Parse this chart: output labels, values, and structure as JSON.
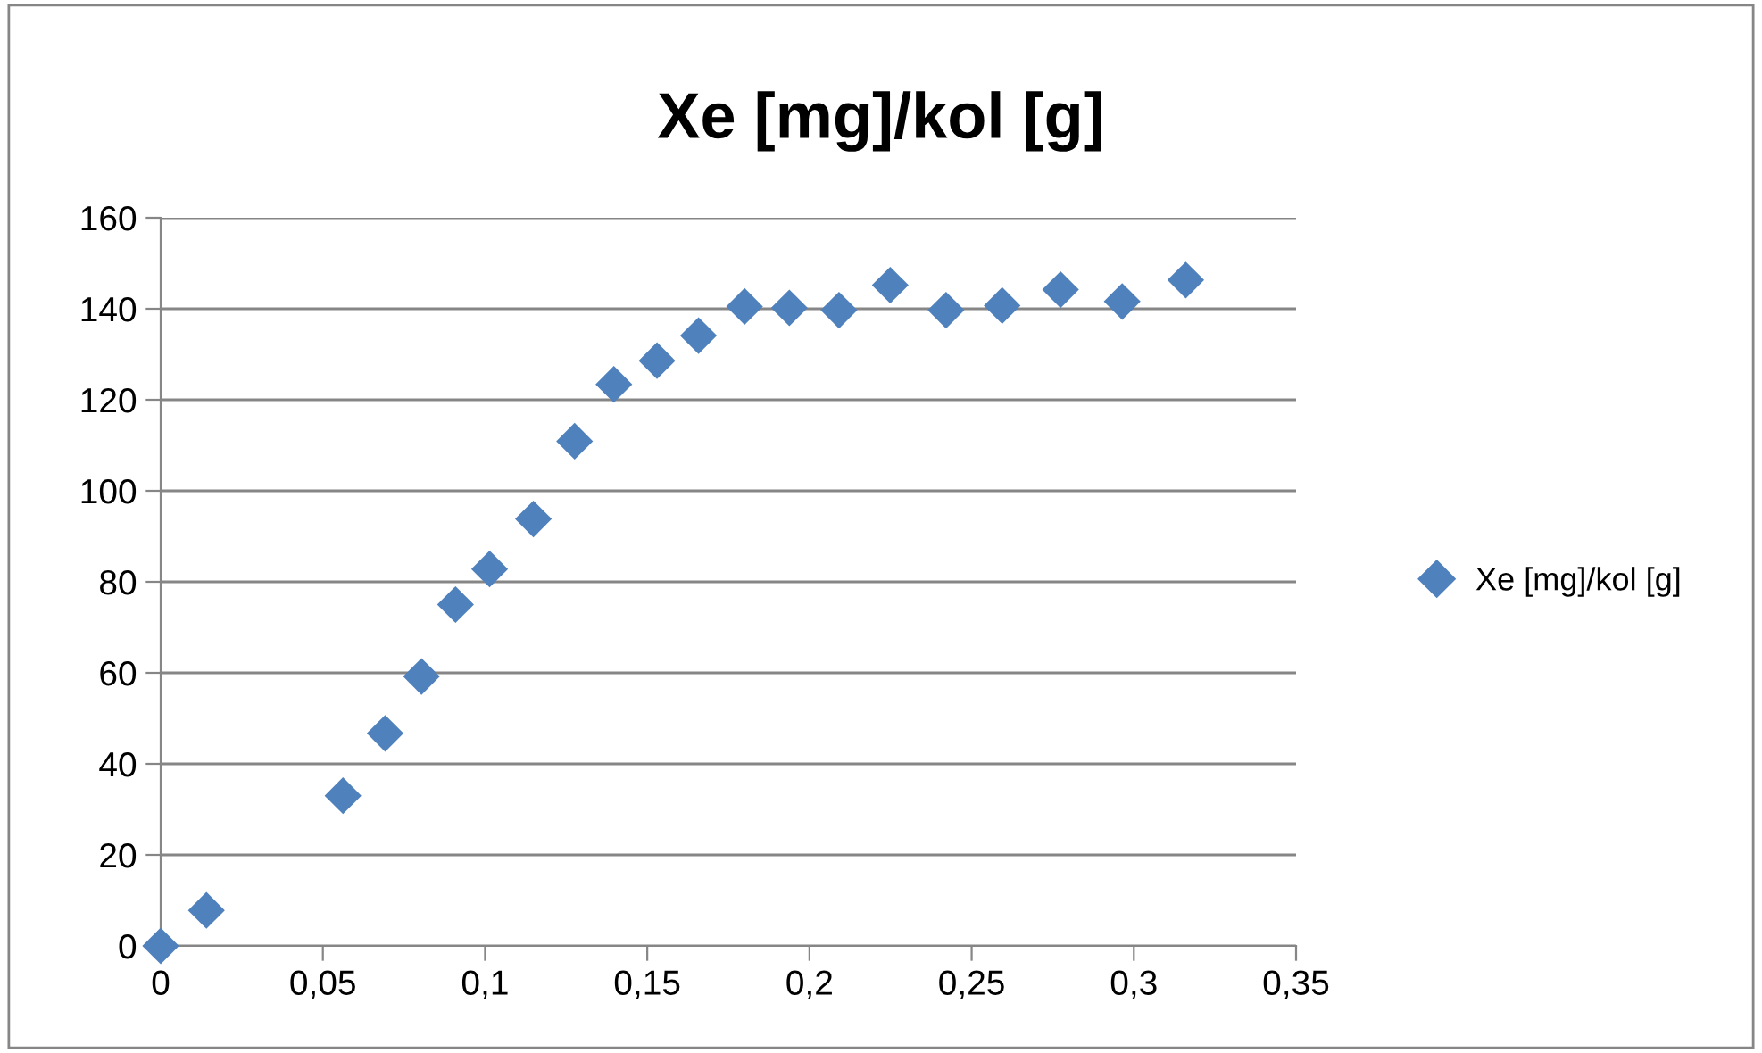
{
  "chart_data": {
    "type": "scatter",
    "title": "Xe [mg]/kol [g]",
    "series": [
      {
        "name": "Xe [mg]/kol [g]",
        "color": "#4f81bd",
        "x": [
          0,
          0.0141,
          0.0562,
          0.0692,
          0.0804,
          0.0909,
          0.1014,
          0.1149,
          0.1276,
          0.1397,
          0.153,
          0.1658,
          0.18,
          0.1938,
          0.2091,
          0.2249,
          0.2421,
          0.2594,
          0.2774,
          0.2964,
          0.316
        ],
        "values": [
          0,
          7.8,
          33,
          46.7,
          59.2,
          75,
          82.8,
          93.8,
          110.9,
          123.4,
          128.6,
          134.1,
          140.5,
          140.2,
          139.7,
          145.2,
          139.7,
          140.7,
          144.2,
          141.6,
          146.3
        ]
      }
    ],
    "xlim": [
      0,
      0.35
    ],
    "xticks": [
      0,
      {
        "value": 0.05,
        "label": "0,05"
      },
      {
        "value": 0.1,
        "label": "0,1"
      },
      {
        "value": 0.15,
        "label": "0,15"
      },
      {
        "value": 0.2,
        "label": "0,2"
      },
      {
        "value": 0.25,
        "label": "0,25"
      },
      {
        "value": 0.3,
        "label": "0,3"
      },
      {
        "value": 0.35,
        "label": "0,35"
      }
    ],
    "ylim": [
      0,
      160
    ],
    "yticks": [
      0,
      20,
      40,
      60,
      80,
      100,
      120,
      140,
      160
    ],
    "grid": "y",
    "legend": "right",
    "marker": "diamond"
  }
}
